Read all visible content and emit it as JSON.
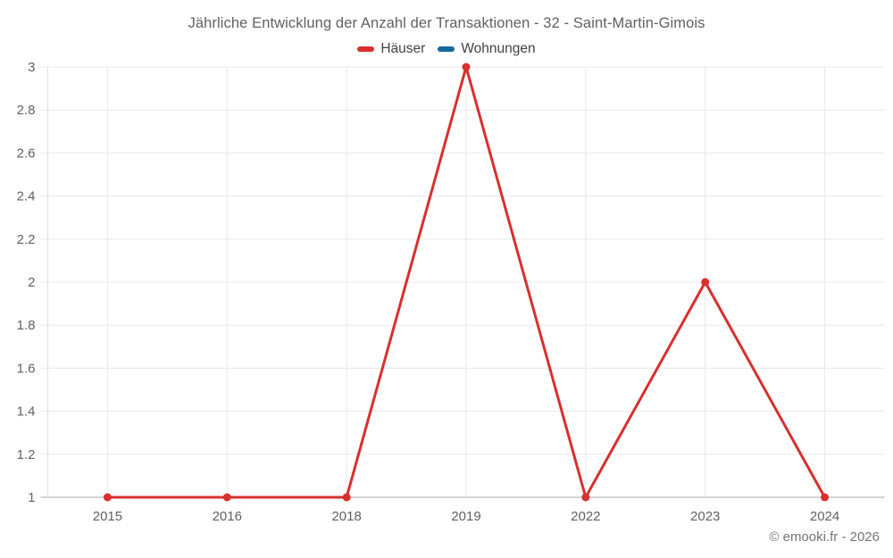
{
  "chart_data": {
    "type": "line",
    "title": "Jährliche Entwicklung der Anzahl der Transaktionen - 32 - Saint-Martin-Gimois",
    "categories": [
      "2015",
      "2016",
      "2018",
      "2019",
      "2022",
      "2023",
      "2024"
    ],
    "series": [
      {
        "name": "Häuser",
        "color": "#d7302e",
        "values": [
          1,
          1,
          1,
          3,
          1,
          2,
          1
        ]
      },
      {
        "name": "Wohnungen",
        "color": "#16699c",
        "values": [
          null,
          null,
          null,
          null,
          null,
          null,
          null
        ]
      }
    ],
    "xlabel": "",
    "ylabel": "",
    "ylim": [
      1,
      3
    ],
    "ytick_step": 0.2,
    "ytick_labels": [
      "1",
      "1.2",
      "1.4",
      "1.6",
      "1.8",
      "2",
      "2.2",
      "2.4",
      "2.6",
      "2.8",
      "3"
    ],
    "grid": true,
    "legend_position": "top"
  },
  "styles": {
    "grid_color": "#e8e8e8",
    "axis_line_color": "#a8a8a8",
    "left_axis_color": "#e0e0e0",
    "tick_label_color": "#616161"
  },
  "footer": {
    "copyright": "© emooki.fr - 2026"
  }
}
